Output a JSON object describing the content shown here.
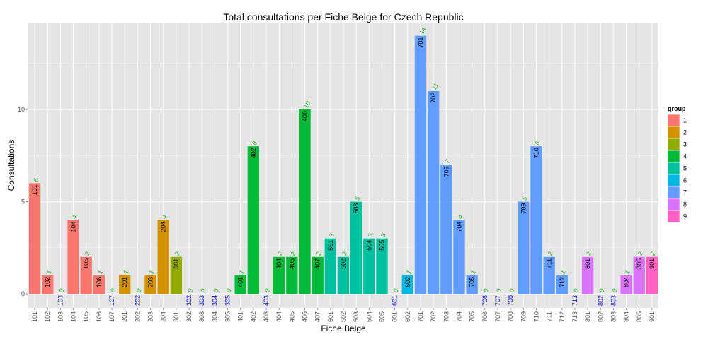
{
  "chart_data": {
    "type": "bar",
    "title": "Total consultations per Fiche Belge for Czech Republic",
    "xlabel": "Fiche Belge",
    "ylabel": "Consultations",
    "ylim": [
      0,
      14.7
    ],
    "yticks": [
      0,
      5,
      10
    ],
    "grid": true,
    "legend_title": "group",
    "legend_position": "right",
    "groups": [
      {
        "name": "1",
        "color": "#F8766D"
      },
      {
        "name": "2",
        "color": "#D39200"
      },
      {
        "name": "3",
        "color": "#93AA00"
      },
      {
        "name": "4",
        "color": "#00BA38"
      },
      {
        "name": "5",
        "color": "#00C19F"
      },
      {
        "name": "6",
        "color": "#00B9E3"
      },
      {
        "name": "7",
        "color": "#619CFF"
      },
      {
        "name": "8",
        "color": "#DB72FB"
      },
      {
        "name": "9",
        "color": "#FF61C3"
      }
    ],
    "categories": [
      "101",
      "102",
      "103",
      "104",
      "105",
      "106",
      "107",
      "201",
      "202",
      "203",
      "204",
      "301",
      "302",
      "303",
      "304",
      "305",
      "401",
      "402",
      "403",
      "404",
      "405",
      "406",
      "407",
      "501",
      "502",
      "503",
      "504",
      "505",
      "601",
      "602",
      "701",
      "702",
      "703",
      "704",
      "705",
      "706",
      "707",
      "708",
      "709",
      "710",
      "711",
      "712",
      "713",
      "801",
      "802",
      "803",
      "804",
      "805",
      "901"
    ],
    "values": [
      6,
      1,
      0,
      4,
      2,
      1,
      0,
      1,
      0,
      1,
      4,
      2,
      0,
      0,
      0,
      0,
      1,
      8,
      0,
      2,
      2,
      10,
      2,
      3,
      2,
      5,
      3,
      3,
      0,
      1,
      14,
      11,
      7,
      4,
      1,
      0,
      0,
      0,
      5,
      8,
      2,
      1,
      0,
      2,
      0,
      0,
      1,
      2,
      2
    ],
    "bar_groups": [
      "1",
      "1",
      "1",
      "1",
      "1",
      "1",
      "1",
      "2",
      "2",
      "2",
      "2",
      "3",
      "3",
      "3",
      "3",
      "3",
      "4",
      "4",
      "4",
      "4",
      "4",
      "4",
      "4",
      "5",
      "5",
      "5",
      "5",
      "5",
      "6",
      "6",
      "7",
      "7",
      "7",
      "7",
      "7",
      "7",
      "7",
      "7",
      "7",
      "7",
      "7",
      "7",
      "7",
      "8",
      "8",
      "8",
      "8",
      "8",
      "9"
    ]
  }
}
